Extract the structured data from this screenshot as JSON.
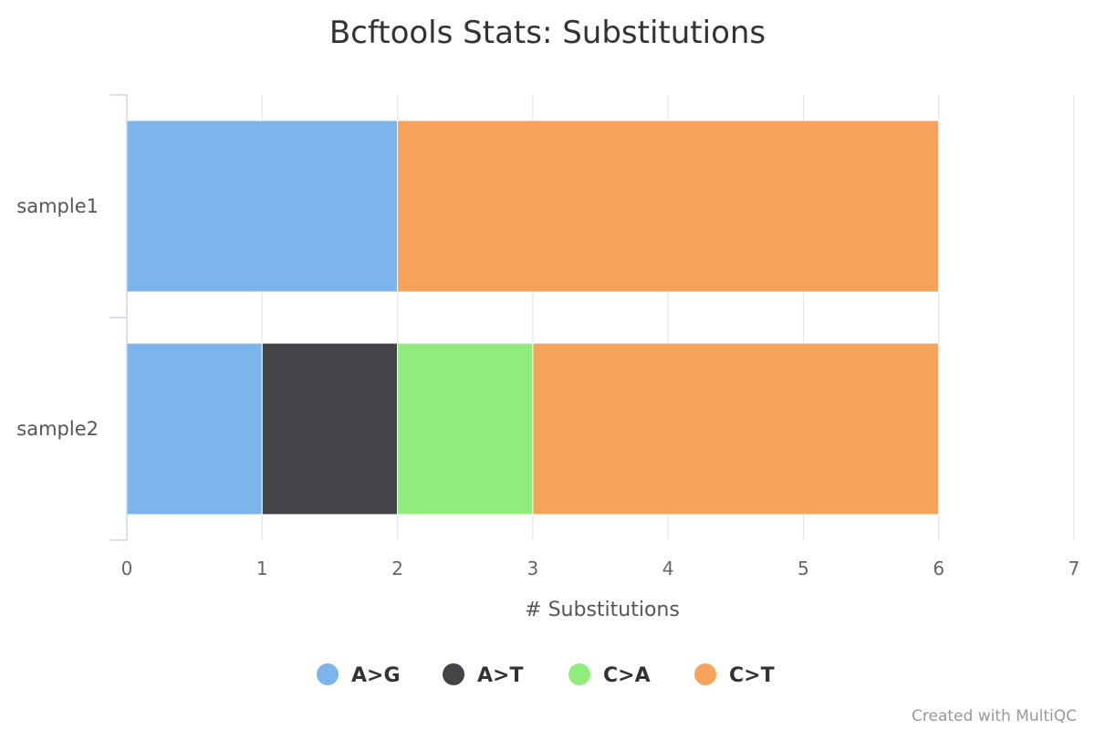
{
  "chart_data": {
    "type": "bar",
    "orientation": "horizontal",
    "stacked": true,
    "title": "Bcftools Stats: Substitutions",
    "xlabel": "# Substitutions",
    "ylabel": "",
    "xlim": [
      0,
      7
    ],
    "x_ticks": [
      0,
      1,
      2,
      3,
      4,
      5,
      6,
      7
    ],
    "categories": [
      "sample1",
      "sample2"
    ],
    "series": [
      {
        "name": "A>G",
        "color": "#7cb5ec",
        "values": [
          2,
          1
        ]
      },
      {
        "name": "A>T",
        "color": "#434348",
        "values": [
          0,
          1
        ]
      },
      {
        "name": "C>A",
        "color": "#90ed7d",
        "values": [
          0,
          1
        ]
      },
      {
        "name": "C>T",
        "color": "#f7a35c",
        "values": [
          4,
          3
        ]
      }
    ],
    "grid": true,
    "legend_position": "bottom-center",
    "credit": "Created with MultiQC"
  }
}
